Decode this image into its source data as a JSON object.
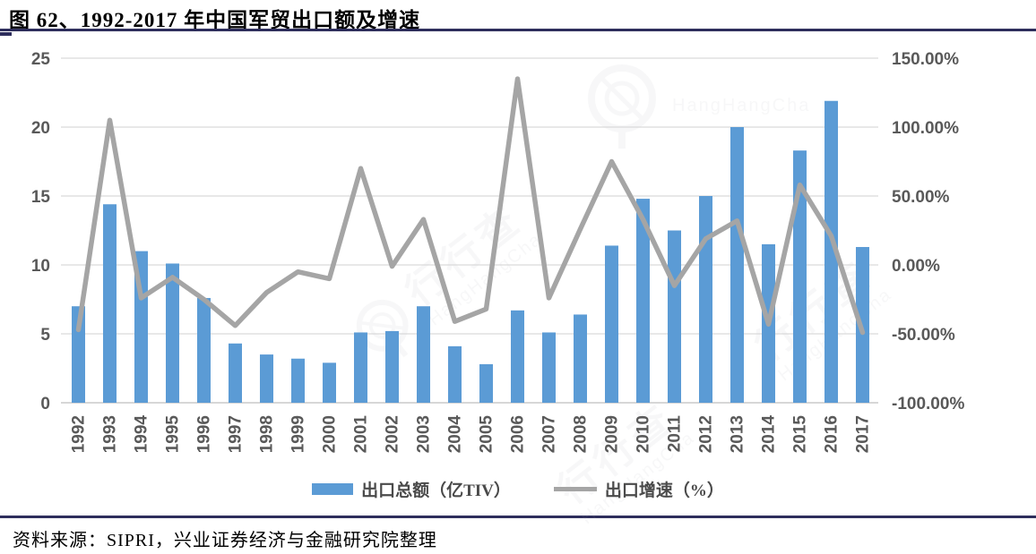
{
  "page": {
    "title": "图 62、1992-2017 年中国军贸出口额及增速",
    "source": "资料来源：SIPRI，兴业证券经济与金融研究院整理",
    "watermark": {
      "cn": "行行查",
      "en": "HangHangCha"
    },
    "colors": {
      "bar": "#5B9BD5",
      "line": "#A5A5A5",
      "rule": "#2E2E5C",
      "axis_text": "#595959",
      "gridline": "#D9D9D9",
      "baseline": "#BFBFBF"
    }
  },
  "chart_data": {
    "type": "bar",
    "title": "图 62、1992-2017 年中国军贸出口额及增速",
    "categories": [
      "1992",
      "1993",
      "1994",
      "1995",
      "1996",
      "1997",
      "1998",
      "1999",
      "2000",
      "2001",
      "2002",
      "2003",
      "2004",
      "2005",
      "2006",
      "2007",
      "2008",
      "2009",
      "2010",
      "2011",
      "2012",
      "2013",
      "2014",
      "2015",
      "2016",
      "2017"
    ],
    "series": [
      {
        "name": "出口总额（亿TIV）",
        "type": "bar",
        "axis": "left",
        "color": "#5B9BD5",
        "values": [
          7.0,
          14.4,
          11.0,
          10.1,
          7.6,
          4.3,
          3.5,
          3.2,
          2.9,
          5.1,
          5.2,
          7.0,
          4.1,
          2.8,
          6.7,
          5.1,
          6.4,
          11.4,
          14.8,
          12.5,
          15.0,
          20.0,
          11.5,
          18.3,
          21.9,
          11.3
        ]
      },
      {
        "name": "出口增速（%）",
        "type": "line",
        "axis": "right",
        "color": "#A5A5A5",
        "values": [
          -47,
          105,
          -24,
          -9,
          -25,
          -44,
          -20,
          -5,
          -10,
          70,
          -1,
          33,
          -41,
          -32,
          135,
          -24,
          26,
          75,
          33,
          -15,
          19,
          32,
          -43,
          58,
          21,
          -49
        ]
      }
    ],
    "left_axis": {
      "min": 0,
      "max": 25,
      "ticks": [
        {
          "value": 25,
          "label": "25"
        },
        {
          "value": 20,
          "label": "20"
        },
        {
          "value": 15,
          "label": "15"
        },
        {
          "value": 10,
          "label": "10"
        },
        {
          "value": 5,
          "label": "5"
        },
        {
          "value": 0,
          "label": "0"
        }
      ]
    },
    "right_axis": {
      "min": -100,
      "max": 150,
      "ticks": [
        {
          "value": 150,
          "label": "150.00%"
        },
        {
          "value": 100,
          "label": "100.00%"
        },
        {
          "value": 50,
          "label": "50.00%"
        },
        {
          "value": 0,
          "label": "0.00%"
        },
        {
          "value": -50,
          "label": "-50.00%"
        },
        {
          "value": -100,
          "label": "-100.00%"
        }
      ]
    },
    "grid": true,
    "legend_position": "bottom",
    "xlabel": "",
    "ylabel": ""
  }
}
